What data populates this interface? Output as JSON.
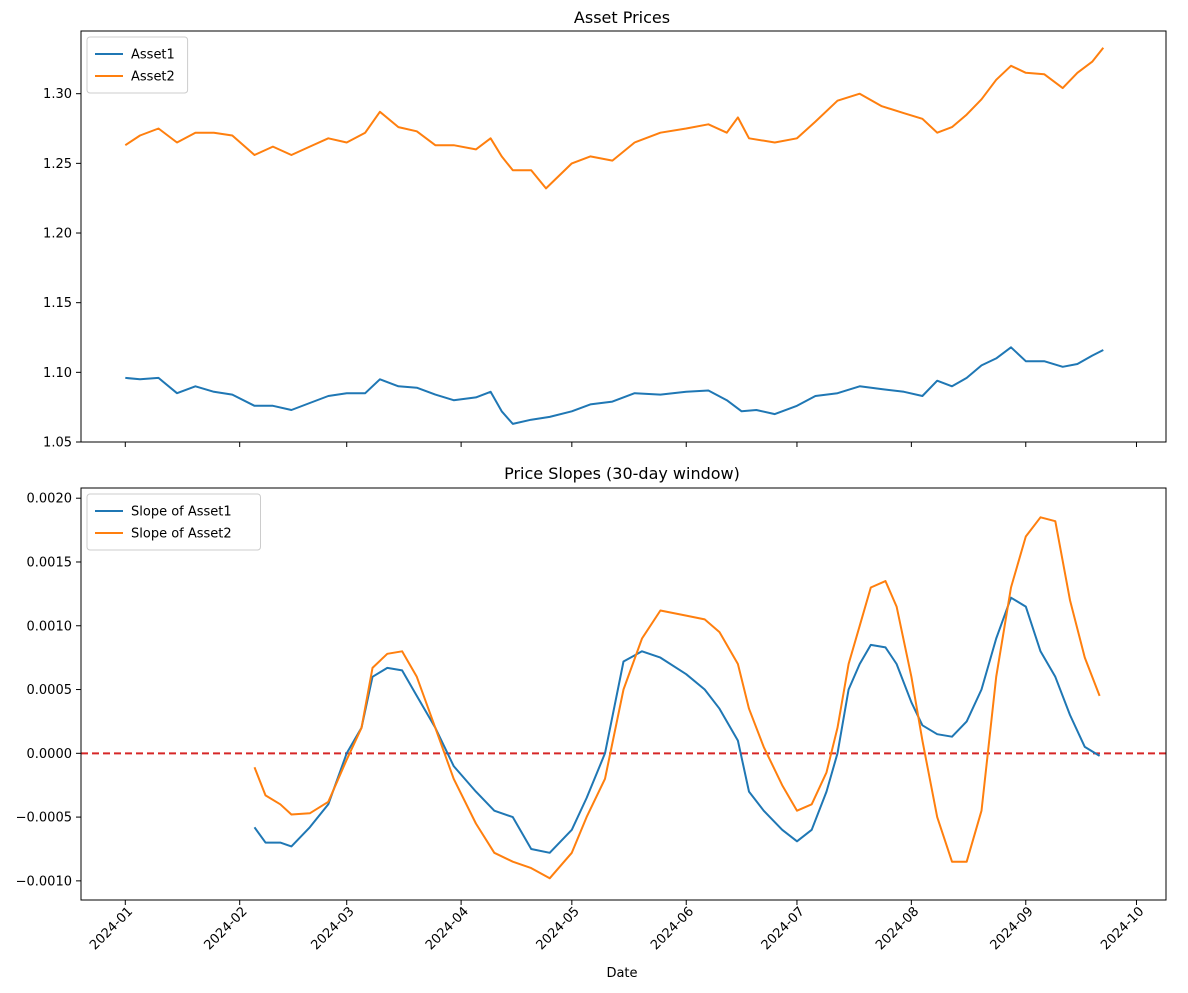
{
  "chart_data": [
    {
      "type": "line",
      "title": "Asset Prices",
      "xlabel": "",
      "ylabel": "",
      "xlim": [
        "2023-12-20",
        "2024-10-09"
      ],
      "ylim": [
        1.05,
        1.345
      ],
      "xticks": [
        "2024-01-01",
        "2024-02-01",
        "2024-03-01",
        "2024-04-01",
        "2024-05-01",
        "2024-06-01",
        "2024-07-01",
        "2024-08-01",
        "2024-09-01",
        "2024-10-01"
      ],
      "xtick_labels_visible": false,
      "yticks": [
        1.05,
        1.1,
        1.15,
        1.2,
        1.25,
        1.3
      ],
      "ytick_labels": [
        "1.05",
        "1.10",
        "1.15",
        "1.20",
        "1.25",
        "1.30"
      ],
      "grid": false,
      "legend": "top-left",
      "series": [
        {
          "name": "Asset1",
          "color": "#1f77b4",
          "points": [
            [
              "2024-01-01",
              1.096
            ],
            [
              "2024-01-05",
              1.095
            ],
            [
              "2024-01-10",
              1.096
            ],
            [
              "2024-01-15",
              1.085
            ],
            [
              "2024-01-20",
              1.09
            ],
            [
              "2024-01-25",
              1.086
            ],
            [
              "2024-01-30",
              1.084
            ],
            [
              "2024-02-05",
              1.076
            ],
            [
              "2024-02-10",
              1.076
            ],
            [
              "2024-02-15",
              1.073
            ],
            [
              "2024-02-20",
              1.078
            ],
            [
              "2024-02-25",
              1.083
            ],
            [
              "2024-03-01",
              1.085
            ],
            [
              "2024-03-06",
              1.085
            ],
            [
              "2024-03-10",
              1.095
            ],
            [
              "2024-03-15",
              1.09
            ],
            [
              "2024-03-20",
              1.089
            ],
            [
              "2024-03-25",
              1.084
            ],
            [
              "2024-03-30",
              1.08
            ],
            [
              "2024-04-05",
              1.082
            ],
            [
              "2024-04-09",
              1.086
            ],
            [
              "2024-04-12",
              1.072
            ],
            [
              "2024-04-15",
              1.063
            ],
            [
              "2024-04-20",
              1.066
            ],
            [
              "2024-04-25",
              1.068
            ],
            [
              "2024-05-01",
              1.072
            ],
            [
              "2024-05-06",
              1.077
            ],
            [
              "2024-05-12",
              1.079
            ],
            [
              "2024-05-18",
              1.085
            ],
            [
              "2024-05-25",
              1.084
            ],
            [
              "2024-06-01",
              1.086
            ],
            [
              "2024-06-07",
              1.087
            ],
            [
              "2024-06-12",
              1.08
            ],
            [
              "2024-06-16",
              1.072
            ],
            [
              "2024-06-20",
              1.073
            ],
            [
              "2024-06-25",
              1.07
            ],
            [
              "2024-07-01",
              1.076
            ],
            [
              "2024-07-06",
              1.083
            ],
            [
              "2024-07-12",
              1.085
            ],
            [
              "2024-07-18",
              1.09
            ],
            [
              "2024-07-24",
              1.088
            ],
            [
              "2024-07-30",
              1.086
            ],
            [
              "2024-08-04",
              1.083
            ],
            [
              "2024-08-08",
              1.094
            ],
            [
              "2024-08-12",
              1.09
            ],
            [
              "2024-08-16",
              1.096
            ],
            [
              "2024-08-20",
              1.105
            ],
            [
              "2024-08-24",
              1.11
            ],
            [
              "2024-08-28",
              1.118
            ],
            [
              "2024-09-01",
              1.108
            ],
            [
              "2024-09-06",
              1.108
            ],
            [
              "2024-09-11",
              1.104
            ],
            [
              "2024-09-15",
              1.106
            ],
            [
              "2024-09-19",
              1.112
            ],
            [
              "2024-09-22",
              1.116
            ]
          ]
        },
        {
          "name": "Asset2",
          "color": "#ff7f0e",
          "points": [
            [
              "2024-01-01",
              1.263
            ],
            [
              "2024-01-05",
              1.27
            ],
            [
              "2024-01-10",
              1.275
            ],
            [
              "2024-01-15",
              1.265
            ],
            [
              "2024-01-20",
              1.272
            ],
            [
              "2024-01-25",
              1.272
            ],
            [
              "2024-01-30",
              1.27
            ],
            [
              "2024-02-05",
              1.256
            ],
            [
              "2024-02-10",
              1.262
            ],
            [
              "2024-02-15",
              1.256
            ],
            [
              "2024-02-20",
              1.262
            ],
            [
              "2024-02-25",
              1.268
            ],
            [
              "2024-03-01",
              1.265
            ],
            [
              "2024-03-06",
              1.272
            ],
            [
              "2024-03-10",
              1.287
            ],
            [
              "2024-03-15",
              1.276
            ],
            [
              "2024-03-20",
              1.273
            ],
            [
              "2024-03-25",
              1.263
            ],
            [
              "2024-03-30",
              1.263
            ],
            [
              "2024-04-05",
              1.26
            ],
            [
              "2024-04-09",
              1.268
            ],
            [
              "2024-04-12",
              1.255
            ],
            [
              "2024-04-15",
              1.245
            ],
            [
              "2024-04-20",
              1.245
            ],
            [
              "2024-04-24",
              1.232
            ],
            [
              "2024-05-01",
              1.25
            ],
            [
              "2024-05-06",
              1.255
            ],
            [
              "2024-05-12",
              1.252
            ],
            [
              "2024-05-18",
              1.265
            ],
            [
              "2024-05-25",
              1.272
            ],
            [
              "2024-06-01",
              1.275
            ],
            [
              "2024-06-07",
              1.278
            ],
            [
              "2024-06-12",
              1.272
            ],
            [
              "2024-06-15",
              1.283
            ],
            [
              "2024-06-18",
              1.268
            ],
            [
              "2024-06-25",
              1.265
            ],
            [
              "2024-07-01",
              1.268
            ],
            [
              "2024-07-06",
              1.28
            ],
            [
              "2024-07-12",
              1.295
            ],
            [
              "2024-07-18",
              1.3
            ],
            [
              "2024-07-24",
              1.291
            ],
            [
              "2024-07-30",
              1.286
            ],
            [
              "2024-08-04",
              1.282
            ],
            [
              "2024-08-08",
              1.272
            ],
            [
              "2024-08-12",
              1.276
            ],
            [
              "2024-08-16",
              1.285
            ],
            [
              "2024-08-20",
              1.296
            ],
            [
              "2024-08-24",
              1.31
            ],
            [
              "2024-08-28",
              1.32
            ],
            [
              "2024-09-01",
              1.315
            ],
            [
              "2024-09-06",
              1.314
            ],
            [
              "2024-09-11",
              1.304
            ],
            [
              "2024-09-15",
              1.315
            ],
            [
              "2024-09-19",
              1.323
            ],
            [
              "2024-09-22",
              1.333
            ]
          ]
        }
      ]
    },
    {
      "type": "line",
      "title": "Price Slopes (30-day window)",
      "xlabel": "Date",
      "ylabel": "",
      "xlim": [
        "2023-12-20",
        "2024-10-09"
      ],
      "ylim": [
        -0.00115,
        0.00208
      ],
      "xticks": [
        "2024-01-01",
        "2024-02-01",
        "2024-03-01",
        "2024-04-01",
        "2024-05-01",
        "2024-06-01",
        "2024-07-01",
        "2024-08-01",
        "2024-09-01",
        "2024-10-01"
      ],
      "xtick_labels": [
        "2024-01",
        "2024-02",
        "2024-03",
        "2024-04",
        "2024-05",
        "2024-06",
        "2024-07",
        "2024-08",
        "2024-09",
        "2024-10"
      ],
      "yticks": [
        -0.001,
        -0.0005,
        0,
        0.0005,
        0.001,
        0.0015,
        0.002
      ],
      "ytick_labels": [
        "−0.0010",
        "−0.0005",
        "0.0000",
        "0.0005",
        "0.0010",
        "0.0015",
        "0.0020"
      ],
      "grid": false,
      "legend": "top-left",
      "reference_line": {
        "y": 0,
        "color": "#d62728",
        "style": "dashed"
      },
      "series": [
        {
          "name": "Slope of Asset1",
          "color": "#1f77b4",
          "points": [
            [
              "2024-02-05",
              -0.00058
            ],
            [
              "2024-02-08",
              -0.0007
            ],
            [
              "2024-02-12",
              -0.0007
            ],
            [
              "2024-02-15",
              -0.00073
            ],
            [
              "2024-02-20",
              -0.00058
            ],
            [
              "2024-02-25",
              -0.0004
            ],
            [
              "2024-03-01",
              0.0
            ],
            [
              "2024-03-05",
              0.0002
            ],
            [
              "2024-03-08",
              0.0006
            ],
            [
              "2024-03-12",
              0.00067
            ],
            [
              "2024-03-16",
              0.00065
            ],
            [
              "2024-03-20",
              0.00045
            ],
            [
              "2024-03-25",
              0.0002
            ],
            [
              "2024-03-30",
              -0.0001
            ],
            [
              "2024-04-05",
              -0.0003
            ],
            [
              "2024-04-10",
              -0.00045
            ],
            [
              "2024-04-15",
              -0.0005
            ],
            [
              "2024-04-20",
              -0.00075
            ],
            [
              "2024-04-25",
              -0.00078
            ],
            [
              "2024-05-01",
              -0.0006
            ],
            [
              "2024-05-05",
              -0.00035
            ],
            [
              "2024-05-10",
              0.0
            ],
            [
              "2024-05-15",
              0.00072
            ],
            [
              "2024-05-20",
              0.0008
            ],
            [
              "2024-05-25",
              0.00075
            ],
            [
              "2024-06-01",
              0.00062
            ],
            [
              "2024-06-06",
              0.0005
            ],
            [
              "2024-06-10",
              0.00035
            ],
            [
              "2024-06-15",
              0.0001
            ],
            [
              "2024-06-18",
              -0.0003
            ],
            [
              "2024-06-22",
              -0.00045
            ],
            [
              "2024-06-27",
              -0.0006
            ],
            [
              "2024-07-01",
              -0.00069
            ],
            [
              "2024-07-05",
              -0.0006
            ],
            [
              "2024-07-09",
              -0.0003
            ],
            [
              "2024-07-12",
              0.0
            ],
            [
              "2024-07-15",
              0.0005
            ],
            [
              "2024-07-18",
              0.0007
            ],
            [
              "2024-07-21",
              0.00085
            ],
            [
              "2024-07-25",
              0.00083
            ],
            [
              "2024-07-28",
              0.0007
            ],
            [
              "2024-08-01",
              0.0004
            ],
            [
              "2024-08-04",
              0.00022
            ],
            [
              "2024-08-08",
              0.00015
            ],
            [
              "2024-08-12",
              0.00013
            ],
            [
              "2024-08-16",
              0.00025
            ],
            [
              "2024-08-20",
              0.0005
            ],
            [
              "2024-08-24",
              0.0009
            ],
            [
              "2024-08-28",
              0.00122
            ],
            [
              "2024-09-01",
              0.00115
            ],
            [
              "2024-09-05",
              0.0008
            ],
            [
              "2024-09-09",
              0.0006
            ],
            [
              "2024-09-13",
              0.0003
            ],
            [
              "2024-09-17",
              5e-05
            ],
            [
              "2024-09-21",
              -2e-05
            ]
          ]
        },
        {
          "name": "Slope of Asset2",
          "color": "#ff7f0e",
          "points": [
            [
              "2024-02-05",
              -0.00011
            ],
            [
              "2024-02-08",
              -0.00033
            ],
            [
              "2024-02-12",
              -0.0004
            ],
            [
              "2024-02-15",
              -0.00048
            ],
            [
              "2024-02-20",
              -0.00047
            ],
            [
              "2024-02-25",
              -0.00038
            ],
            [
              "2024-03-01",
              -5e-05
            ],
            [
              "2024-03-05",
              0.0002
            ],
            [
              "2024-03-08",
              0.00067
            ],
            [
              "2024-03-12",
              0.00078
            ],
            [
              "2024-03-16",
              0.0008
            ],
            [
              "2024-03-20",
              0.0006
            ],
            [
              "2024-03-25",
              0.0002
            ],
            [
              "2024-03-30",
              -0.0002
            ],
            [
              "2024-04-05",
              -0.00055
            ],
            [
              "2024-04-10",
              -0.00078
            ],
            [
              "2024-04-15",
              -0.00085
            ],
            [
              "2024-04-20",
              -0.0009
            ],
            [
              "2024-04-25",
              -0.00098
            ],
            [
              "2024-05-01",
              -0.00078
            ],
            [
              "2024-05-05",
              -0.0005
            ],
            [
              "2024-05-10",
              -0.0002
            ],
            [
              "2024-05-15",
              0.0005
            ],
            [
              "2024-05-20",
              0.0009
            ],
            [
              "2024-05-25",
              0.00112
            ],
            [
              "2024-06-01",
              0.00108
            ],
            [
              "2024-06-06",
              0.00105
            ],
            [
              "2024-06-10",
              0.00095
            ],
            [
              "2024-06-15",
              0.0007
            ],
            [
              "2024-06-18",
              0.00035
            ],
            [
              "2024-06-22",
              5e-05
            ],
            [
              "2024-06-27",
              -0.00025
            ],
            [
              "2024-07-01",
              -0.00045
            ],
            [
              "2024-07-05",
              -0.0004
            ],
            [
              "2024-07-09",
              -0.00015
            ],
            [
              "2024-07-12",
              0.0002
            ],
            [
              "2024-07-15",
              0.0007
            ],
            [
              "2024-07-18",
              0.001
            ],
            [
              "2024-07-21",
              0.0013
            ],
            [
              "2024-07-25",
              0.00135
            ],
            [
              "2024-07-28",
              0.00115
            ],
            [
              "2024-08-01",
              0.0006
            ],
            [
              "2024-08-04",
              0.0001
            ],
            [
              "2024-08-08",
              -0.0005
            ],
            [
              "2024-08-12",
              -0.00085
            ],
            [
              "2024-08-16",
              -0.00085
            ],
            [
              "2024-08-20",
              -0.00045
            ],
            [
              "2024-08-24",
              0.0006
            ],
            [
              "2024-08-28",
              0.0013
            ],
            [
              "2024-09-01",
              0.0017
            ],
            [
              "2024-09-05",
              0.00185
            ],
            [
              "2024-09-09",
              0.00182
            ],
            [
              "2024-09-13",
              0.0012
            ],
            [
              "2024-09-17",
              0.00075
            ],
            [
              "2024-09-21",
              0.00045
            ]
          ]
        }
      ]
    }
  ]
}
